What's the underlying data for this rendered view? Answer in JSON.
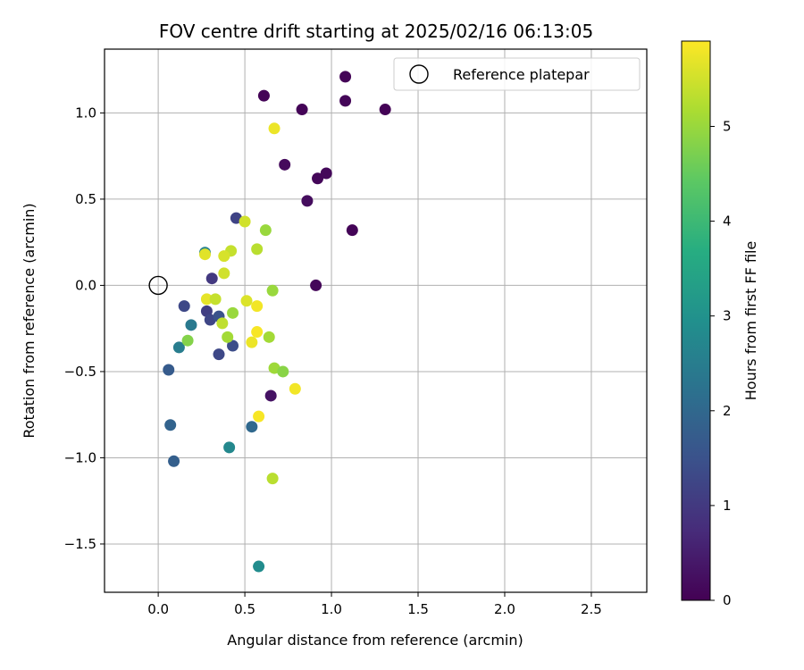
{
  "chart_data": {
    "type": "scatter",
    "title": "FOV centre drift starting at 2025/02/16 06:13:05",
    "xlabel": "Angular distance from reference (arcmin)",
    "ylabel": "Rotation from reference (arcmin)",
    "xlim": [
      -0.31,
      2.82
    ],
    "ylim": [
      -1.78,
      1.37
    ],
    "xticks": [
      0.0,
      0.5,
      1.0,
      1.5,
      2.0,
      2.5
    ],
    "yticks": [
      -1.5,
      -1.0,
      -0.5,
      0.0,
      0.5,
      1.0
    ],
    "xtick_labels": [
      "0.0",
      "0.5",
      "1.0",
      "1.5",
      "2.0",
      "2.5"
    ],
    "ytick_labels": [
      "−1.5",
      "−1.0",
      "−0.5",
      "0.0",
      "0.5",
      "1.0"
    ],
    "grid": true,
    "legend": {
      "location": "upper right",
      "entries": [
        "Reference platepar"
      ]
    },
    "reference_point": {
      "x": 0.0,
      "y": 0.0,
      "name": "Reference platepar"
    },
    "colorbar": {
      "label": "Hours from first FF file",
      "colormap": "viridis",
      "range": [
        0,
        5.9
      ],
      "ticks": [
        0,
        1,
        2,
        3,
        4,
        5
      ],
      "tick_labels": [
        "0",
        "1",
        "2",
        "3",
        "4",
        "5"
      ]
    },
    "points": [
      {
        "x": 1.08,
        "y": 1.21,
        "t": 0.05
      },
      {
        "x": 0.61,
        "y": 1.1,
        "t": 0.05
      },
      {
        "x": 0.83,
        "y": 1.02,
        "t": 0.05
      },
      {
        "x": 1.08,
        "y": 1.07,
        "t": 0.08
      },
      {
        "x": 1.31,
        "y": 1.02,
        "t": 0.03
      },
      {
        "x": 0.73,
        "y": 0.7,
        "t": 0.15
      },
      {
        "x": 0.92,
        "y": 0.62,
        "t": 0.1
      },
      {
        "x": 0.97,
        "y": 0.65,
        "t": 0.12
      },
      {
        "x": 0.86,
        "y": 0.49,
        "t": 0.2
      },
      {
        "x": 1.12,
        "y": 0.32,
        "t": 0.05
      },
      {
        "x": 0.91,
        "y": 0.0,
        "t": 0.1
      },
      {
        "x": 0.65,
        "y": -0.64,
        "t": 0.3
      },
      {
        "x": 0.45,
        "y": 0.39,
        "t": 1.2
      },
      {
        "x": 0.31,
        "y": 0.04,
        "t": 1.0
      },
      {
        "x": 0.15,
        "y": -0.12,
        "t": 1.3
      },
      {
        "x": 0.28,
        "y": -0.15,
        "t": 1.1
      },
      {
        "x": 0.3,
        "y": -0.2,
        "t": 1.25
      },
      {
        "x": 0.35,
        "y": -0.18,
        "t": 1.5
      },
      {
        "x": 0.35,
        "y": -0.4,
        "t": 1.3
      },
      {
        "x": 0.43,
        "y": -0.35,
        "t": 1.4
      },
      {
        "x": 0.06,
        "y": -0.49,
        "t": 1.7
      },
      {
        "x": 0.07,
        "y": -0.81,
        "t": 1.9
      },
      {
        "x": 0.09,
        "y": -1.02,
        "t": 1.8
      },
      {
        "x": 0.54,
        "y": -0.82,
        "t": 2.0
      },
      {
        "x": 0.27,
        "y": 0.19,
        "t": 2.6
      },
      {
        "x": 0.19,
        "y": -0.23,
        "t": 2.4
      },
      {
        "x": 0.12,
        "y": -0.36,
        "t": 2.5
      },
      {
        "x": 0.41,
        "y": -0.94,
        "t": 2.75
      },
      {
        "x": 0.58,
        "y": -1.63,
        "t": 2.85
      },
      {
        "x": 0.67,
        "y": 0.91,
        "t": 5.75
      },
      {
        "x": 0.5,
        "y": 0.37,
        "t": 5.5
      },
      {
        "x": 0.62,
        "y": 0.32,
        "t": 5.0
      },
      {
        "x": 0.42,
        "y": 0.2,
        "t": 5.4
      },
      {
        "x": 0.57,
        "y": 0.21,
        "t": 5.3
      },
      {
        "x": 0.38,
        "y": 0.17,
        "t": 5.55
      },
      {
        "x": 0.27,
        "y": 0.18,
        "t": 5.65
      },
      {
        "x": 0.38,
        "y": 0.07,
        "t": 5.5
      },
      {
        "x": 0.66,
        "y": -0.03,
        "t": 5.0
      },
      {
        "x": 0.28,
        "y": -0.08,
        "t": 5.7
      },
      {
        "x": 0.33,
        "y": -0.08,
        "t": 5.4
      },
      {
        "x": 0.51,
        "y": -0.09,
        "t": 5.6
      },
      {
        "x": 0.57,
        "y": -0.12,
        "t": 5.8
      },
      {
        "x": 0.43,
        "y": -0.16,
        "t": 5.0
      },
      {
        "x": 0.37,
        "y": -0.22,
        "t": 5.35
      },
      {
        "x": 0.4,
        "y": -0.3,
        "t": 5.1
      },
      {
        "x": 0.17,
        "y": -0.32,
        "t": 4.8
      },
      {
        "x": 0.57,
        "y": -0.27,
        "t": 5.85
      },
      {
        "x": 0.64,
        "y": -0.3,
        "t": 5.1
      },
      {
        "x": 0.54,
        "y": -0.33,
        "t": 5.75
      },
      {
        "x": 0.67,
        "y": -0.48,
        "t": 5.05
      },
      {
        "x": 0.72,
        "y": -0.5,
        "t": 4.85
      },
      {
        "x": 0.79,
        "y": -0.6,
        "t": 5.8
      },
      {
        "x": 0.58,
        "y": -0.76,
        "t": 5.85
      },
      {
        "x": 0.66,
        "y": -1.12,
        "t": 5.3
      }
    ]
  }
}
